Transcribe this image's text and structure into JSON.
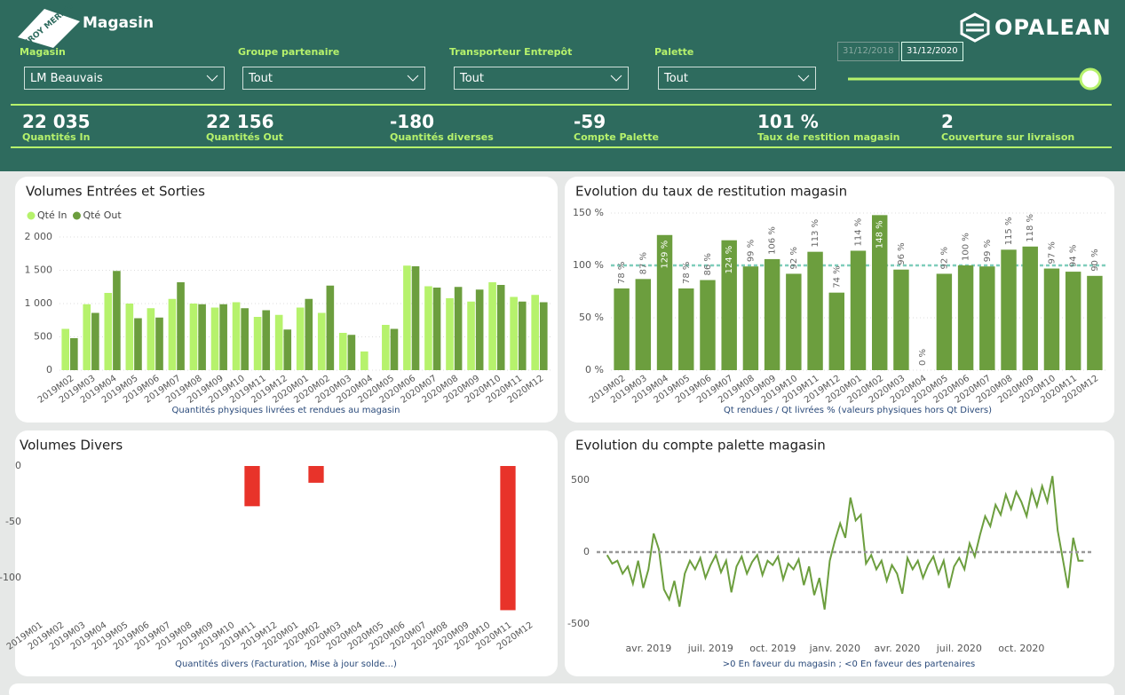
{
  "header": {
    "logo": "LEROY MERLIN",
    "title": "Magasin",
    "brand": "OPALEAN"
  },
  "filters": [
    {
      "label": "Magasin",
      "value": "LM Beauvais"
    },
    {
      "label": "Groupe partenaire",
      "value": "Tout"
    },
    {
      "label": "Transporteur Entrepôt",
      "value": "Tout"
    },
    {
      "label": "Palette",
      "value": "Tout"
    }
  ],
  "dates": [
    "31/12/2018",
    "31/12/2020"
  ],
  "kpis": [
    {
      "value": "22 035",
      "label": "Quantités In"
    },
    {
      "value": "22 156",
      "label": "Quantités Out"
    },
    {
      "value": "-180",
      "label": "Quantités diverses"
    },
    {
      "value": "-59",
      "label": "Compte Palette"
    },
    {
      "value": "101 %",
      "label": "Taux de restition magasin"
    },
    {
      "value": "2",
      "label": "Couverture sur livraison"
    }
  ],
  "chart_data": [
    {
      "type": "bar",
      "title": "Volumes Entrées et Sorties",
      "x_label": "Quantités physiques livrées et rendues au magasin",
      "categories": [
        "2019M02",
        "2019M03",
        "2019M04",
        "2019M05",
        "2019M06",
        "2019M07",
        "2019M08",
        "2019M09",
        "2019M10",
        "2019M11",
        "2019M12",
        "2020M01",
        "2020M02",
        "2020M03",
        "2020M04",
        "2020M05",
        "2020M06",
        "2020M07",
        "2020M08",
        "2020M09",
        "2020M10",
        "2020M11",
        "2020M12"
      ],
      "series": [
        {
          "name": "Qté In",
          "color": "#b6f26c",
          "values": [
            620,
            990,
            1160,
            1000,
            930,
            1070,
            1000,
            940,
            1020,
            800,
            830,
            940,
            860,
            560,
            280,
            680,
            1570,
            1260,
            1080,
            1030,
            1320,
            1100,
            1130
          ]
        },
        {
          "name": "Qté Out",
          "color": "#6c9e3e",
          "values": [
            480,
            860,
            1490,
            780,
            790,
            1320,
            990,
            990,
            930,
            900,
            610,
            1070,
            1270,
            530,
            null,
            620,
            1560,
            1240,
            1250,
            1210,
            1280,
            1030,
            1020
          ]
        }
      ],
      "ylim": [
        0,
        2000
      ],
      "yticks": [
        0,
        500,
        {
          "value": 1000,
          "label": "1 000"
        },
        {
          "value": 1500,
          "label": "1 500"
        },
        {
          "value": 2000,
          "label": "2 000"
        }
      ],
      "grid": true,
      "legend": "top-left"
    },
    {
      "type": "bar",
      "title": "Evolution du taux de restitution magasin",
      "x_label": "Qt rendues / Qt livrées % (valeurs physiques hors Qt Divers)",
      "categories": [
        "2019M02",
        "2019M03",
        "2019M04",
        "2019M05",
        "2019M06",
        "2019M07",
        "2019M08",
        "2019M09",
        "2019M10",
        "2019M11",
        "2019M12",
        "2020M01",
        "2020M02",
        "2020M03",
        "2020M04",
        "2020M05",
        "2020M06",
        "2020M07",
        "2020M08",
        "2020M09",
        "2020M10",
        "2020M11",
        "2020M12"
      ],
      "values": [
        78,
        87,
        129,
        78,
        86,
        124,
        99,
        106,
        92,
        113,
        74,
        114,
        148,
        96,
        0,
        92,
        100,
        99,
        115,
        118,
        97,
        94,
        90
      ],
      "value_labels": [
        "78 %",
        "87 %",
        "129 %",
        "78 %",
        "86 %",
        "124 %",
        "99 %",
        "106 %",
        "92 %",
        "113 %",
        "74 %",
        "114 %",
        "148 %",
        "96 %",
        "0 %",
        "92 %",
        "100 %",
        "99 %",
        "115 %",
        "118 %",
        "97 %",
        "94 %",
        "90 %"
      ],
      "color": "#6c9e3e",
      "ylim": [
        0,
        150
      ],
      "yticks": [
        {
          "value": 0,
          "label": "0 %"
        },
        {
          "value": 50,
          "label": "50 %"
        },
        {
          "value": 100,
          "label": "100 %"
        },
        {
          "value": 150,
          "label": "150 %"
        }
      ],
      "grid": true,
      "reference_line": 100,
      "reference_color": "#7fcdbb"
    },
    {
      "type": "bar",
      "title": "Volumes Divers",
      "x_label": "Quantités divers (Facturation, Mise à jour solde...)",
      "categories": [
        "2019M01",
        "2019M02",
        "2019M03",
        "2019M04",
        "2019M05",
        "2019M06",
        "2019M07",
        "2019M08",
        "2019M09",
        "2019M10",
        "2019M11",
        "2019M12",
        "2020M01",
        "2020M02",
        "2020M03",
        "2020M04",
        "2020M05",
        "2020M06",
        "2020M07",
        "2020M08",
        "2020M09",
        "2020M10",
        "2020M11",
        "2020M12"
      ],
      "values": [
        null,
        null,
        null,
        null,
        null,
        null,
        null,
        null,
        null,
        null,
        -36,
        null,
        null,
        -15,
        null,
        null,
        null,
        null,
        null,
        null,
        null,
        null,
        -129,
        null
      ],
      "color": "#e8332a",
      "ylim": [
        -135,
        0
      ],
      "yticks": [
        0,
        -50,
        -100
      ],
      "grid": false
    },
    {
      "type": "line",
      "title": "Evolution du compte palette magasin",
      "x_label": ">0 En faveur du magasin ; <0 En faveur des partenaires",
      "x": [
        2,
        2.25,
        2.5,
        2.75,
        3,
        3.25,
        3.5,
        3.75,
        4,
        4.25,
        4.5,
        4.75,
        5,
        5.25,
        5.5,
        5.75,
        6,
        6.25,
        6.5,
        6.75,
        7,
        7.25,
        7.5,
        7.75,
        8,
        8.25,
        8.5,
        8.75,
        9,
        9.25,
        9.5,
        9.75,
        10,
        10.25,
        10.5,
        10.75,
        11,
        11.25,
        11.5,
        11.75,
        12,
        12.25,
        12.5,
        12.75,
        13,
        13.25,
        13.5,
        13.75,
        14,
        14.25,
        14.5,
        14.75,
        15,
        15.25,
        15.5,
        15.75,
        16,
        16.25,
        16.5,
        16.75,
        17,
        17.25,
        17.5,
        17.75,
        18,
        18.25,
        18.5,
        18.75,
        19,
        19.25,
        19.5,
        19.75,
        20,
        20.25,
        20.5,
        20.75,
        21,
        21.25,
        21.5,
        21.75,
        22,
        22.25,
        22.5,
        22.75,
        23,
        23.25,
        23.5,
        23.75,
        24,
        24.25,
        24.5,
        24.75,
        25
      ],
      "values": [
        -20,
        -80,
        -60,
        -150,
        -100,
        -220,
        -60,
        -250,
        -120,
        130,
        20,
        -260,
        -330,
        -200,
        -380,
        -150,
        -60,
        -120,
        -40,
        -180,
        -90,
        -20,
        -140,
        -60,
        -280,
        -100,
        -30,
        -150,
        -70,
        -20,
        -160,
        -60,
        -90,
        -30,
        -190,
        -80,
        -120,
        -50,
        -230,
        -100,
        -300,
        -180,
        -400,
        -60,
        80,
        200,
        100,
        380,
        220,
        260,
        -80,
        -20,
        -120,
        -60,
        -200,
        -90,
        -150,
        -290,
        -40,
        -120,
        -60,
        -180,
        -90,
        -30,
        -150,
        -60,
        -250,
        -100,
        -40,
        -120,
        60,
        -30,
        120,
        250,
        180,
        330,
        260,
        400,
        300,
        420,
        350,
        250,
        430,
        320,
        460,
        350,
        530,
        150,
        -50,
        -250,
        100,
        -60,
        -60
      ],
      "color": "#6c9e3e",
      "xlim": [
        1.5,
        25.5
      ],
      "xticks": [
        {
          "value": 4,
          "label": "avr. 2019"
        },
        {
          "value": 7,
          "label": "juil. 2019"
        },
        {
          "value": 10,
          "label": "oct. 2019"
        },
        {
          "value": 13,
          "label": "janv. 2020"
        },
        {
          "value": 16,
          "label": "avr. 2020"
        },
        {
          "value": 19,
          "label": "juil. 2020"
        },
        {
          "value": 22,
          "label": "oct. 2020"
        }
      ],
      "ylim": [
        -575,
        600
      ],
      "yticks": [
        500,
        0,
        -500
      ],
      "grid": false,
      "reference_line": 0,
      "reference_color": "#999999"
    }
  ]
}
